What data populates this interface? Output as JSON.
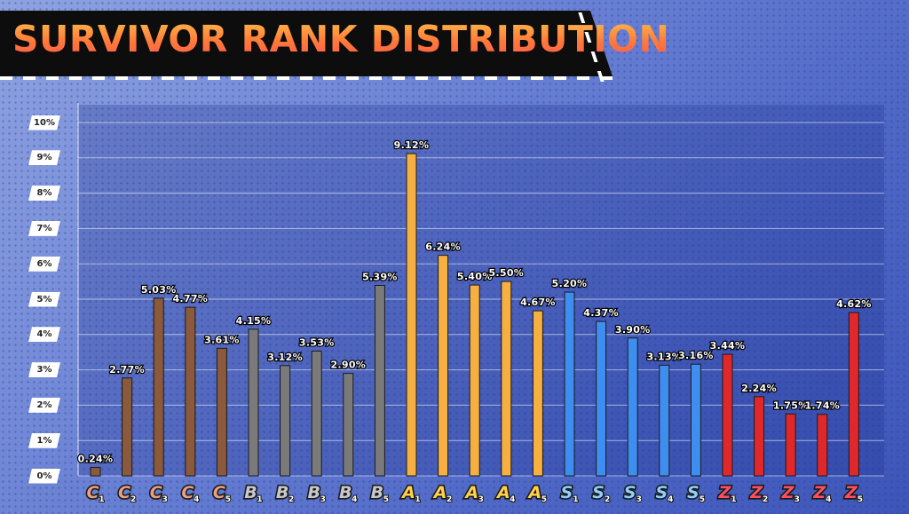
{
  "title": "SURVIVOR RANK DISTRIBUTION",
  "chart_data": {
    "type": "bar",
    "title": "SURVIVOR RANK DISTRIBUTION",
    "ylim": [
      0,
      10
    ],
    "yticks": [
      "0%",
      "1%",
      "2%",
      "3%",
      "4%",
      "5%",
      "6%",
      "7%",
      "8%",
      "9%",
      "10%"
    ],
    "grid": true,
    "categories": [
      {
        "letter": "C",
        "sub": "1"
      },
      {
        "letter": "C",
        "sub": "2"
      },
      {
        "letter": "C",
        "sub": "3"
      },
      {
        "letter": "C",
        "sub": "4"
      },
      {
        "letter": "C",
        "sub": "5"
      },
      {
        "letter": "B",
        "sub": "1"
      },
      {
        "letter": "B",
        "sub": "2"
      },
      {
        "letter": "B",
        "sub": "3"
      },
      {
        "letter": "B",
        "sub": "4"
      },
      {
        "letter": "B",
        "sub": "5"
      },
      {
        "letter": "A",
        "sub": "1"
      },
      {
        "letter": "A",
        "sub": "2"
      },
      {
        "letter": "A",
        "sub": "3"
      },
      {
        "letter": "A",
        "sub": "4"
      },
      {
        "letter": "A",
        "sub": "5"
      },
      {
        "letter": "S",
        "sub": "1"
      },
      {
        "letter": "S",
        "sub": "2"
      },
      {
        "letter": "S",
        "sub": "3"
      },
      {
        "letter": "S",
        "sub": "4"
      },
      {
        "letter": "S",
        "sub": "5"
      },
      {
        "letter": "Z",
        "sub": "1"
      },
      {
        "letter": "Z",
        "sub": "2"
      },
      {
        "letter": "Z",
        "sub": "3"
      },
      {
        "letter": "Z",
        "sub": "4"
      },
      {
        "letter": "Z",
        "sub": "5"
      }
    ],
    "values": [
      0.24,
      2.77,
      5.03,
      4.77,
      3.61,
      4.15,
      3.12,
      3.53,
      2.9,
      5.39,
      9.12,
      6.24,
      5.4,
      5.5,
      4.67,
      5.2,
      4.37,
      3.9,
      3.13,
      3.16,
      3.44,
      2.24,
      1.75,
      1.74,
      4.62
    ],
    "labels": [
      "0.24%",
      "2.77%",
      "5.03%",
      "4.77%",
      "3.61%",
      "4.15%",
      "3.12%",
      "3.53%",
      "2.90%",
      "5.39%",
      "9.12%",
      "6.24%",
      "5.40%",
      "5.50%",
      "4.67%",
      "5.20%",
      "4.37%",
      "3.90%",
      "3.13%",
      "3.16%",
      "3.44%",
      "2.24%",
      "1.75%",
      "1.74%",
      "4.62%"
    ],
    "tier_colors": {
      "C": "#8b5a3c",
      "B": "#7a7a7a",
      "A": "#f5b041",
      "S": "#3d8ef0",
      "Z": "#e0282a"
    },
    "badge_colors": {
      "C": "#e8a080",
      "B": "#c8c8c8",
      "A": "#ffd24a",
      "S": "#8fd0ff",
      "Z": "#ff5060"
    }
  }
}
